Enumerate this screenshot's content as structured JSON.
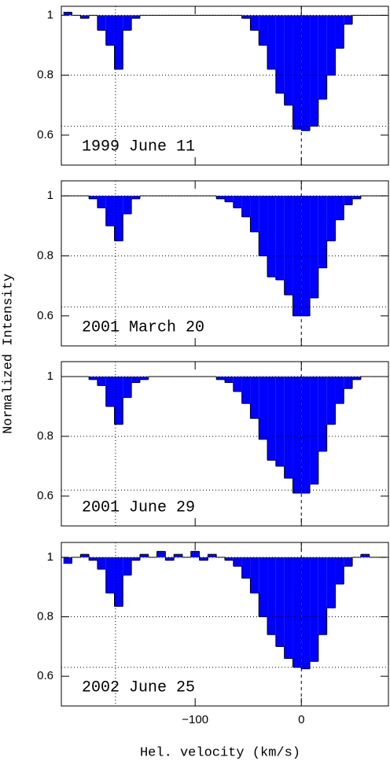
{
  "axis_labels": {
    "x": "Hel. velocity (km/s)",
    "y": "Normalized Intensity"
  },
  "chart_data": [
    {
      "type": "histogram",
      "label": "1999 June 11",
      "color": "#0000ff",
      "bins": [
        -224,
        -216,
        -208,
        -200,
        -192,
        -184,
        -176,
        -168,
        -160,
        -152,
        -144,
        -136,
        -128,
        -120,
        -112,
        -104,
        -96,
        -88,
        -80,
        -72,
        -64,
        -56,
        -48,
        -40,
        -32,
        -24,
        -16,
        -8,
        0,
        8,
        16,
        24,
        32,
        40,
        48,
        56,
        64,
        72,
        80
      ],
      "values": [
        1.01,
        1.0,
        0.99,
        1.0,
        0.95,
        0.9,
        0.82,
        0.95,
        0.99,
        1.0,
        1.0,
        1.0,
        1.0,
        1.0,
        1.0,
        1.0,
        1.0,
        1.0,
        1.0,
        1.0,
        1.0,
        0.99,
        0.95,
        0.9,
        0.82,
        0.74,
        0.7,
        0.62,
        0.615,
        0.63,
        0.72,
        0.8,
        0.89,
        0.97,
        1.0,
        1.0,
        1.0,
        1.0
      ],
      "xlim": [
        -226,
        82
      ],
      "xticks": [
        {
          "value": -100,
          "label": "−100"
        },
        0
      ],
      "ylim": [
        0.5,
        1.03
      ],
      "yticks": [
        1,
        0.8,
        0.6
      ],
      "hlines": [
        1,
        0.8,
        0.63
      ],
      "vlines": [
        -175,
        0
      ]
    },
    {
      "type": "histogram",
      "label": "2001 March 20",
      "color": "#0000ff",
      "bins": [
        -224,
        -216,
        -208,
        -200,
        -192,
        -184,
        -176,
        -168,
        -160,
        -152,
        -144,
        -136,
        -128,
        -120,
        -112,
        -104,
        -96,
        -88,
        -80,
        -72,
        -64,
        -56,
        -48,
        -40,
        -32,
        -24,
        -16,
        -8,
        0,
        8,
        16,
        24,
        32,
        40,
        48,
        56,
        64,
        72,
        80
      ],
      "values": [
        1.0,
        1.0,
        1.0,
        0.99,
        0.96,
        0.9,
        0.85,
        0.94,
        0.99,
        1.0,
        1.0,
        1.0,
        1.0,
        1.0,
        1.0,
        1.0,
        1.0,
        1.0,
        0.99,
        0.98,
        0.96,
        0.93,
        0.88,
        0.8,
        0.73,
        0.72,
        0.67,
        0.6,
        0.6,
        0.66,
        0.76,
        0.85,
        0.92,
        0.97,
        0.99,
        1.0,
        1.0,
        1.0
      ],
      "xlim": [
        -226,
        82
      ],
      "xticks": [
        {
          "value": -100,
          "label": "−100"
        },
        0
      ],
      "ylim": [
        0.5,
        1.05
      ],
      "yticks": [
        1,
        0.8,
        0.6
      ],
      "hlines": [
        1,
        0.8,
        0.63
      ],
      "vlines": [
        -175,
        0
      ]
    },
    {
      "type": "histogram",
      "label": "2001 June 29",
      "color": "#0000ff",
      "bins": [
        -224,
        -216,
        -208,
        -200,
        -192,
        -184,
        -176,
        -168,
        -160,
        -152,
        -144,
        -136,
        -128,
        -120,
        -112,
        -104,
        -96,
        -88,
        -80,
        -72,
        -64,
        -56,
        -48,
        -40,
        -32,
        -24,
        -16,
        -8,
        0,
        8,
        16,
        24,
        32,
        40,
        48,
        56,
        64,
        72,
        80
      ],
      "values": [
        1.0,
        1.0,
        1.0,
        0.99,
        0.97,
        0.9,
        0.84,
        0.93,
        0.98,
        0.99,
        1.0,
        1.0,
        1.0,
        1.0,
        1.0,
        1.0,
        1.0,
        1.0,
        0.99,
        0.98,
        0.95,
        0.91,
        0.86,
        0.79,
        0.72,
        0.7,
        0.66,
        0.61,
        0.61,
        0.64,
        0.75,
        0.84,
        0.91,
        0.96,
        0.99,
        1.0,
        1.0,
        1.0
      ],
      "xlim": [
        -226,
        82
      ],
      "xticks": [
        {
          "value": -100,
          "label": "−100"
        },
        0
      ],
      "ylim": [
        0.5,
        1.05
      ],
      "yticks": [
        1,
        0.8,
        0.6
      ],
      "hlines": [
        1,
        0.8,
        0.62
      ],
      "vlines": [
        -175,
        0
      ]
    },
    {
      "type": "histogram",
      "label": "2002 June 25",
      "color": "#0000ff",
      "bins": [
        -224,
        -216,
        -208,
        -200,
        -192,
        -184,
        -176,
        -168,
        -160,
        -152,
        -144,
        -136,
        -128,
        -120,
        -112,
        -104,
        -96,
        -88,
        -80,
        -72,
        -64,
        -56,
        -48,
        -40,
        -32,
        -24,
        -16,
        -8,
        0,
        8,
        16,
        24,
        32,
        40,
        48,
        56,
        64,
        72,
        80
      ],
      "values": [
        0.98,
        1.0,
        1.01,
        0.99,
        0.96,
        0.88,
        0.835,
        0.94,
        0.99,
        1.01,
        1.0,
        1.02,
        0.99,
        1.01,
        1.0,
        1.02,
        0.99,
        1.01,
        1.0,
        0.99,
        0.97,
        0.93,
        0.88,
        0.8,
        0.74,
        0.7,
        0.66,
        0.63,
        0.625,
        0.65,
        0.74,
        0.83,
        0.91,
        0.97,
        1.0,
        1.01,
        1.0,
        1.0
      ],
      "xlim": [
        -226,
        82
      ],
      "xticks": [
        {
          "value": -100,
          "label": "−100"
        },
        0
      ],
      "ylim": [
        0.5,
        1.05
      ],
      "yticks": [
        1,
        0.8,
        0.6
      ],
      "hlines": [
        1,
        0.8,
        0.63
      ],
      "vlines": [
        -175,
        0
      ]
    }
  ]
}
